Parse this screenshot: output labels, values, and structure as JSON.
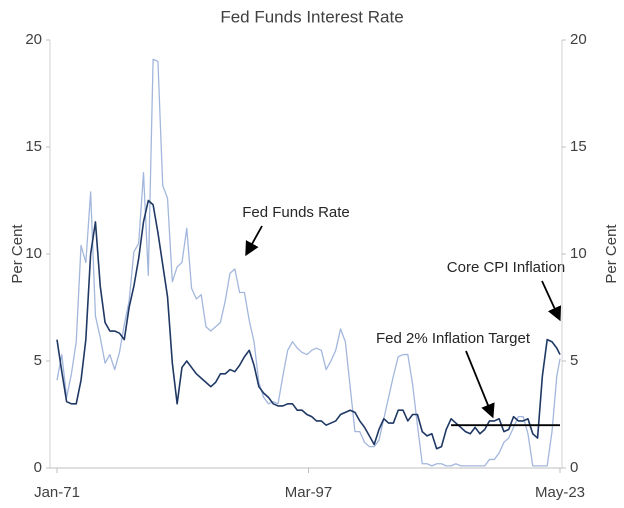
{
  "chart_data": {
    "type": "line",
    "title": "Fed Funds Interest Rate",
    "y_label": "Per Cent",
    "y2_label": "Per Cent",
    "x": [
      "Jan-71",
      "Jul-71",
      "Jan-72",
      "Jul-72",
      "Jan-73",
      "Jul-73",
      "Jan-74",
      "Jul-74",
      "Jan-75",
      "Jul-75",
      "Jan-76",
      "Jul-76",
      "Jan-77",
      "Jul-77",
      "Jan-78",
      "Jul-78",
      "Jan-79",
      "Jul-79",
      "Jan-80",
      "Jul-80",
      "Jan-81",
      "Jul-81",
      "Jan-82",
      "Jul-82",
      "Jan-83",
      "Jul-83",
      "Jan-84",
      "Jul-84",
      "Jan-85",
      "Jul-85",
      "Jan-86",
      "Jul-86",
      "Jan-87",
      "Jul-87",
      "Jan-88",
      "Jul-88",
      "Jan-89",
      "Jul-89",
      "Jan-90",
      "Jul-90",
      "Jan-91",
      "Jul-91",
      "Jan-92",
      "Jul-92",
      "Jan-93",
      "Jul-93",
      "Jan-94",
      "Jul-94",
      "Jan-95",
      "Jul-95",
      "Jan-96",
      "Jul-96",
      "Jan-97",
      "Jul-97",
      "Jan-98",
      "Jul-98",
      "Jan-99",
      "Jul-99",
      "Jan-00",
      "Jul-00",
      "Jan-01",
      "Jul-01",
      "Jan-02",
      "Jul-02",
      "Jan-03",
      "Jul-03",
      "Jan-04",
      "Jul-04",
      "Jan-05",
      "Jul-05",
      "Jan-06",
      "Jul-06",
      "Jan-07",
      "Jul-07",
      "Jan-08",
      "Jul-08",
      "Jan-09",
      "Jul-09",
      "Jan-10",
      "Jul-10",
      "Jan-11",
      "Jul-11",
      "Jan-12",
      "Jul-12",
      "Jan-13",
      "Jul-13",
      "Jan-14",
      "Jul-14",
      "Jan-15",
      "Jul-15",
      "Jan-16",
      "Jul-16",
      "Jan-17",
      "Jul-17",
      "Jan-18",
      "Jul-18",
      "Jan-19",
      "Jul-19",
      "Jan-20",
      "Jul-20",
      "Jan-21",
      "Jul-21",
      "Jan-22",
      "Jul-22",
      "Jan-23",
      "May-23"
    ],
    "xlim": [
      "Jan-71",
      "May-23"
    ],
    "xticks": [
      "Jan-71",
      "Mar-97",
      "May-23"
    ],
    "ylim": [
      0,
      20
    ],
    "yticks": [
      0,
      5,
      10,
      15,
      20
    ],
    "y2lim": [
      0,
      20
    ],
    "y2ticks": [
      0,
      5,
      10,
      15,
      20
    ],
    "series": [
      {
        "name": "Fed Funds Rate",
        "color": "#a3b7dd",
        "values": [
          4.1,
          5.3,
          3.3,
          4.4,
          5.9,
          10.4,
          9.6,
          12.9,
          7.1,
          6.1,
          4.9,
          5.3,
          4.6,
          5.4,
          6.7,
          7.8,
          10.1,
          10.5,
          13.8,
          9.0,
          19.1,
          19.0,
          13.2,
          12.6,
          8.7,
          9.4,
          9.6,
          11.2,
          8.4,
          7.9,
          8.1,
          6.6,
          6.4,
          6.6,
          6.8,
          7.8,
          9.1,
          9.3,
          8.2,
          8.2,
          6.9,
          5.9,
          4.0,
          3.3,
          3.0,
          3.1,
          3.0,
          4.3,
          5.5,
          5.9,
          5.6,
          5.4,
          5.3,
          5.5,
          5.6,
          5.5,
          4.6,
          5.0,
          5.5,
          6.5,
          5.9,
          3.8,
          1.7,
          1.7,
          1.2,
          1.0,
          1.0,
          1.3,
          2.3,
          3.3,
          4.3,
          5.2,
          5.3,
          5.3,
          3.9,
          2.0,
          0.2,
          0.2,
          0.1,
          0.2,
          0.2,
          0.1,
          0.1,
          0.2,
          0.1,
          0.1,
          0.1,
          0.1,
          0.1,
          0.1,
          0.4,
          0.4,
          0.7,
          1.2,
          1.4,
          1.9,
          2.4,
          2.4,
          1.6,
          0.1,
          0.1,
          0.1,
          0.1,
          1.7,
          4.3,
          5.1
        ]
      },
      {
        "name": "Core CPI Inflation",
        "color": "#1f3864",
        "values": [
          6.0,
          4.5,
          3.1,
          3.0,
          3.0,
          4.1,
          6.0,
          10.0,
          11.5,
          8.5,
          6.8,
          6.4,
          6.4,
          6.3,
          6.0,
          7.5,
          8.5,
          9.8,
          11.5,
          12.5,
          12.3,
          11.0,
          9.5,
          8.0,
          4.9,
          3.0,
          4.7,
          5.0,
          4.7,
          4.4,
          4.2,
          4.0,
          3.8,
          4.0,
          4.4,
          4.4,
          4.6,
          4.5,
          4.8,
          5.2,
          5.5,
          4.8,
          3.8,
          3.5,
          3.3,
          3.0,
          2.9,
          2.9,
          3.0,
          3.0,
          2.7,
          2.7,
          2.5,
          2.4,
          2.2,
          2.2,
          2.0,
          2.1,
          2.2,
          2.5,
          2.6,
          2.7,
          2.6,
          2.2,
          1.9,
          1.5,
          1.1,
          1.8,
          2.3,
          2.1,
          2.1,
          2.7,
          2.7,
          2.2,
          2.5,
          2.5,
          1.7,
          1.5,
          1.6,
          0.9,
          1.0,
          1.8,
          2.3,
          2.1,
          1.9,
          1.7,
          1.6,
          1.9,
          1.6,
          1.8,
          2.2,
          2.2,
          2.3,
          1.7,
          1.8,
          2.4,
          2.2,
          2.2,
          2.3,
          1.6,
          1.4,
          4.3,
          6.0,
          5.9,
          5.6,
          5.3
        ]
      }
    ],
    "target": {
      "label": "Fed 2% Inflation Target",
      "value": 2,
      "start": "Jan-12",
      "end": "May-23",
      "color": "#000000"
    }
  }
}
